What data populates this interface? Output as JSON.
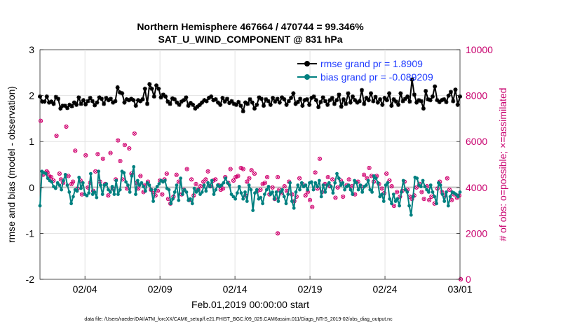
{
  "chart_data": {
    "type": "line",
    "title": "Northern Hemisphere 467664 / 470744 = 99.346%",
    "subtitle": "SAT_U_WIND_COMPONENT @ 831 hPa",
    "xlabel": "Feb.01,2019 00:00:00 start",
    "ylabel": "rmse and bias (model - observation)",
    "ylabel_right": "# of obs: o=possible; ×=assimilated",
    "xlim": [
      0,
      28
    ],
    "ylim": [
      -2,
      3
    ],
    "ylim_right": [
      0,
      10000
    ],
    "x_ticks": [
      {
        "pos": 3,
        "label": "02/04"
      },
      {
        "pos": 8,
        "label": "02/09"
      },
      {
        "pos": 13,
        "label": "02/14"
      },
      {
        "pos": 18,
        "label": "02/19"
      },
      {
        "pos": 23,
        "label": "02/24"
      },
      {
        "pos": 28,
        "label": "03/01"
      }
    ],
    "y_ticks": [
      "-2",
      "-1",
      "0",
      "1",
      "2",
      "3"
    ],
    "y_ticks_right": [
      "0",
      "2000",
      "4000",
      "6000",
      "8000",
      "10000"
    ],
    "legend": [
      {
        "label": "rmse grand pr = 1.8909",
        "color": "#000000"
      },
      {
        "label": "bias grand pr = -0.089209",
        "color": "#008080"
      }
    ],
    "footer": "data file: /Users/raeder/DAI/ATM_forcXX/CAM6_setup/f.e21.FHIST_BGC.f09_025.CAM6assim.011/Diags_NTrS_2019-02/obs_diag_output.nc",
    "series": [
      {
        "name": "rmse",
        "values": [
          1.98,
          1.87,
          1.87,
          1.98,
          1.85,
          1.87,
          1.82,
          1.97,
          1.93,
          1.72,
          1.78,
          1.78,
          1.73,
          1.8,
          1.77,
          1.85,
          1.8,
          1.96,
          1.82,
          1.9,
          1.81,
          1.88,
          1.95,
          1.88,
          1.79,
          1.85,
          1.96,
          1.93,
          1.82,
          1.95,
          1.9,
          1.93,
          1.85,
          1.88,
          2.18,
          2.07,
          2.05,
          1.85,
          1.92,
          1.9,
          1.93,
          1.9,
          1.78,
          1.9,
          1.88,
          1.92,
          2.15,
          1.82,
          2.25,
          2.15,
          1.98,
          2.22,
          2.15,
          1.96,
          2.02,
          1.98,
          1.87,
          1.82,
          1.94,
          1.92,
          1.85,
          1.8,
          1.87,
          1.9,
          1.96,
          1.78,
          1.84,
          1.8,
          1.72,
          1.76,
          1.8,
          1.85,
          1.9,
          1.88,
          1.95,
          1.98,
          1.9,
          1.92,
          1.85,
          1.8,
          1.95,
          1.87,
          1.93,
          1.84,
          1.88,
          1.82,
          1.8,
          1.86,
          1.78,
          1.66,
          1.85,
          1.82,
          1.92,
          1.85,
          1.72,
          1.8,
          1.96,
          1.93,
          1.78,
          1.92,
          1.88,
          1.8,
          1.95,
          1.87,
          1.93,
          1.85,
          1.96,
          1.92,
          1.8,
          1.88,
          1.95,
          2.05,
          1.82,
          1.86,
          1.93,
          1.78,
          1.9,
          1.92,
          1.8,
          1.95,
          1.98,
          1.9,
          1.75,
          1.86,
          1.96,
          1.88,
          1.8,
          1.9,
          1.95,
          1.82,
          1.9,
          2.02,
          1.76,
          1.92,
          1.82,
          2.05,
          1.85,
          1.98,
          1.9,
          1.85,
          1.88,
          2.12,
          1.82,
          1.95,
          1.9,
          2.05,
          1.88,
          1.97,
          1.85,
          1.92,
          1.8,
          1.95,
          1.9,
          2.05,
          1.78,
          1.92,
          1.87,
          1.8,
          2.05,
          1.88,
          1.93,
          1.98,
          1.87,
          2.35,
          2.02,
          1.85,
          1.9,
          1.88,
          1.72,
          2.1,
          1.92,
          1.9,
          1.98,
          2.2,
          1.9,
          1.86,
          1.9,
          1.92,
          1.86,
          2.0,
          2.08,
          1.88,
          2.13,
          1.8,
          1.98
        ]
      },
      {
        "name": "bias",
        "values": [
          -0.4,
          0.35,
          0.32,
          0.3,
          0.2,
          0.15,
          0.12,
          0.02,
          -0.02,
          0.1,
          0.05,
          -0.05,
          0.15,
          0.28,
          0.05,
          -0.1,
          -0.35,
          -0.2,
          -0.05,
          -0.08,
          0.22,
          -0.02,
          0.1,
          -0.15,
          -0.18,
          -0.12,
          0.3,
          -0.15,
          -0.1,
          -0.22,
          0.35,
          0.05,
          -0.15,
          0.05,
          0.08,
          -0.05,
          -0.1,
          0.02,
          -0.15,
          0.15,
          -0.15,
          -0.05,
          0.35,
          0.32,
          0.12,
          0.05,
          -0.1,
          0.25,
          0.45,
          -0.15,
          0.15,
          0.05,
          0.1,
          0.02,
          -0.08,
          0.1,
          0.05,
          -0.05,
          -0.3,
          -0.05,
          0.02,
          0.08,
          0.15,
          0.12,
          0.15,
          -0.02,
          -0.05,
          -0.35,
          -0.25,
          -0.1,
          0.05,
          -0.28,
          0.2,
          -0.15,
          -0.05,
          -0.1,
          -0.28,
          -0.25,
          -0.35,
          -0.02,
          -0.1,
          -0.05,
          -0.15,
          -0.1,
          0.05,
          -0.08,
          0.1,
          0.02,
          0.15,
          -0.15,
          -0.05,
          0.05,
          0.02,
          0.05,
          0.1,
          0.2,
          0.1,
          0.05,
          -0.15,
          -0.2,
          -0.25,
          -0.12,
          0.02,
          -0.12,
          -0.25,
          -0.1,
          -0.3,
          0.05,
          -0.05,
          -0.5,
          -0.12,
          -0.05,
          -0.25,
          -0.22,
          -0.35,
          -0.15,
          -0.05,
          0.02,
          -0.15,
          -0.1,
          -0.25,
          -0.1,
          -0.3,
          -0.1,
          -0.05,
          -0.2,
          -0.35,
          -0.15,
          0.1,
          -0.3,
          -0.45,
          -0.1,
          0.05,
          -0.05,
          0.1,
          0.02,
          0.05,
          -0.05,
          0.1,
          0.12,
          -0.05,
          0.1,
          0.02,
          0.15,
          -0.2,
          0.05,
          -0.1,
          0.05,
          0.1,
          0.02,
          -0.12,
          0.1,
          0.3,
          0.2,
          0.05,
          0.1,
          -0.05,
          0.02,
          0.05,
          -0.05,
          -0.15,
          0.15,
          0.1,
          -0.05,
          0.05,
          -0.1,
          0.02,
          0.05,
          0.15,
          -0.05,
          -0.1,
          0.25,
          0.2,
          0.1,
          -0.2,
          -0.15,
          -0.3,
          0.05,
          0.1,
          -0.25,
          -0.35,
          -0.15,
          -0.3,
          -0.25,
          -0.4,
          -0.1,
          0.15,
          -0.05,
          -0.1,
          -0.4,
          -0.6,
          -0.2,
          0.22,
          0.2,
          0.05,
          0.02,
          0.15,
          0.02,
          -0.05,
          -0.1,
          0.05,
          -0.1,
          -0.2,
          -0.35,
          0.1,
          0.05,
          -0.15,
          -0.3,
          -0.1,
          -0.4,
          -0.2,
          -0.1,
          -0.12,
          -0.15,
          -0.2,
          -0.1
        ]
      }
    ],
    "obs_possible": [
      [
        0.05,
        6900
      ],
      [
        0.2,
        4550
      ],
      [
        0.45,
        4700
      ],
      [
        0.5,
        4650
      ],
      [
        0.6,
        4500
      ],
      [
        0.75,
        4450
      ],
      [
        0.9,
        4300
      ],
      [
        1.1,
        6250
      ],
      [
        1.3,
        4600
      ],
      [
        1.4,
        4350
      ],
      [
        1.55,
        4200
      ],
      [
        1.75,
        6650
      ],
      [
        1.9,
        4500
      ],
      [
        2.1,
        4150
      ],
      [
        2.2,
        4250
      ],
      [
        2.35,
        5600
      ],
      [
        2.5,
        3950
      ],
      [
        2.7,
        4300
      ],
      [
        2.8,
        3700
      ],
      [
        3.05,
        5400
      ],
      [
        3.2,
        4000
      ],
      [
        3.35,
        4200
      ],
      [
        3.55,
        3850
      ],
      [
        3.7,
        4700
      ],
      [
        3.85,
        5450
      ],
      [
        4.0,
        4250
      ],
      [
        4.2,
        5250
      ],
      [
        4.35,
        4150
      ],
      [
        4.55,
        3650
      ],
      [
        4.7,
        5500
      ],
      [
        4.85,
        3950
      ],
      [
        5.05,
        4350
      ],
      [
        5.2,
        6050
      ],
      [
        5.35,
        5150
      ],
      [
        5.5,
        4350
      ],
      [
        5.65,
        5850
      ],
      [
        5.8,
        3950
      ],
      [
        5.95,
        5700
      ],
      [
        6.1,
        4600
      ],
      [
        6.3,
        6350
      ],
      [
        6.45,
        4200
      ],
      [
        6.55,
        3950
      ],
      [
        6.7,
        4500
      ],
      [
        6.9,
        3800
      ],
      [
        7.0,
        4100
      ],
      [
        7.2,
        4250
      ],
      [
        7.4,
        3900
      ],
      [
        7.55,
        3750
      ],
      [
        7.7,
        3650
      ],
      [
        7.85,
        3850
      ],
      [
        8.0,
        4300
      ],
      [
        8.15,
        3700
      ],
      [
        8.3,
        4350
      ],
      [
        8.45,
        4600
      ],
      [
        8.55,
        3500
      ],
      [
        8.7,
        3300
      ],
      [
        8.9,
        3600
      ],
      [
        9.1,
        4550
      ],
      [
        9.25,
        4250
      ],
      [
        9.45,
        3700
      ],
      [
        9.6,
        3900
      ],
      [
        9.8,
        4800
      ],
      [
        9.95,
        3450
      ],
      [
        10.1,
        4350
      ],
      [
        10.25,
        3650
      ],
      [
        10.4,
        4150
      ],
      [
        10.55,
        3900
      ],
      [
        10.7,
        4050
      ],
      [
        10.9,
        4250
      ],
      [
        11.05,
        4350
      ],
      [
        11.2,
        4700
      ],
      [
        11.35,
        4050
      ],
      [
        11.55,
        4300
      ],
      [
        11.7,
        4350
      ],
      [
        11.9,
        4100
      ],
      [
        12.05,
        3900
      ],
      [
        12.2,
        3950
      ],
      [
        12.35,
        4450
      ],
      [
        12.55,
        4200
      ],
      [
        12.7,
        4800
      ],
      [
        12.9,
        4300
      ],
      [
        13.05,
        4450
      ],
      [
        13.2,
        4500
      ],
      [
        13.4,
        4850
      ],
      [
        13.55,
        4800
      ],
      [
        13.7,
        3650
      ],
      [
        13.8,
        4250
      ],
      [
        13.95,
        4400
      ],
      [
        14.1,
        4750
      ],
      [
        14.3,
        4600
      ],
      [
        14.5,
        3850
      ],
      [
        14.7,
        3900
      ],
      [
        14.85,
        4150
      ],
      [
        15.0,
        4200
      ],
      [
        15.15,
        4450
      ],
      [
        15.3,
        3700
      ],
      [
        15.5,
        4000
      ],
      [
        15.65,
        3500
      ],
      [
        15.85,
        4450
      ],
      [
        15.95,
        3900
      ],
      [
        16.1,
        3750
      ],
      [
        16.3,
        4050
      ],
      [
        16.45,
        3850
      ],
      [
        16.6,
        4250
      ],
      [
        16.8,
        3700
      ],
      [
        16.95,
        3400
      ],
      [
        17.1,
        3600
      ],
      [
        17.3,
        4400
      ],
      [
        17.5,
        4150
      ],
      [
        17.7,
        3650
      ],
      [
        17.85,
        3800
      ],
      [
        18.0,
        3450
      ],
      [
        18.15,
        3150
      ],
      [
        18.35,
        4650
      ],
      [
        18.5,
        3950
      ],
      [
        18.65,
        5250
      ],
      [
        18.8,
        3800
      ],
      [
        19.0,
        4150
      ],
      [
        19.2,
        4450
      ],
      [
        19.35,
        4050
      ],
      [
        19.5,
        4350
      ],
      [
        19.7,
        3550
      ],
      [
        19.85,
        4000
      ],
      [
        20.05,
        4300
      ],
      [
        20.2,
        3600
      ],
      [
        20.45,
        4100
      ],
      [
        20.6,
        4350
      ],
      [
        20.8,
        4050
      ],
      [
        21.0,
        3700
      ],
      [
        21.2,
        4250
      ],
      [
        21.4,
        4050
      ],
      [
        21.6,
        4550
      ],
      [
        21.8,
        4400
      ],
      [
        21.95,
        4850
      ],
      [
        22.1,
        4500
      ],
      [
        22.25,
        4250
      ],
      [
        22.45,
        4500
      ],
      [
        22.6,
        4150
      ],
      [
        22.8,
        3950
      ],
      [
        22.95,
        3750
      ],
      [
        23.1,
        4600
      ],
      [
        23.3,
        4300
      ],
      [
        23.45,
        4050
      ],
      [
        23.6,
        3200
      ],
      [
        23.8,
        3800
      ],
      [
        24.0,
        3600
      ],
      [
        24.15,
        3850
      ],
      [
        24.3,
        4250
      ],
      [
        24.5,
        3900
      ],
      [
        24.65,
        3600
      ],
      [
        24.8,
        3500
      ],
      [
        24.95,
        3650
      ],
      [
        25.1,
        4000
      ],
      [
        25.3,
        4150
      ],
      [
        25.45,
        3800
      ],
      [
        25.6,
        3500
      ],
      [
        25.8,
        4050
      ],
      [
        25.95,
        3450
      ],
      [
        26.1,
        3600
      ],
      [
        26.3,
        3300
      ],
      [
        26.5,
        3950
      ],
      [
        26.65,
        4250
      ],
      [
        26.8,
        3800
      ],
      [
        27.0,
        3650
      ],
      [
        27.15,
        4400
      ],
      [
        27.3,
        3900
      ],
      [
        27.45,
        3450
      ],
      [
        27.6,
        3700
      ],
      [
        27.8,
        3550
      ],
      [
        27.95,
        3650
      ],
      [
        28.05,
        0
      ]
    ],
    "obs_outlier": [
      [
        15.85,
        2000
      ]
    ]
  }
}
